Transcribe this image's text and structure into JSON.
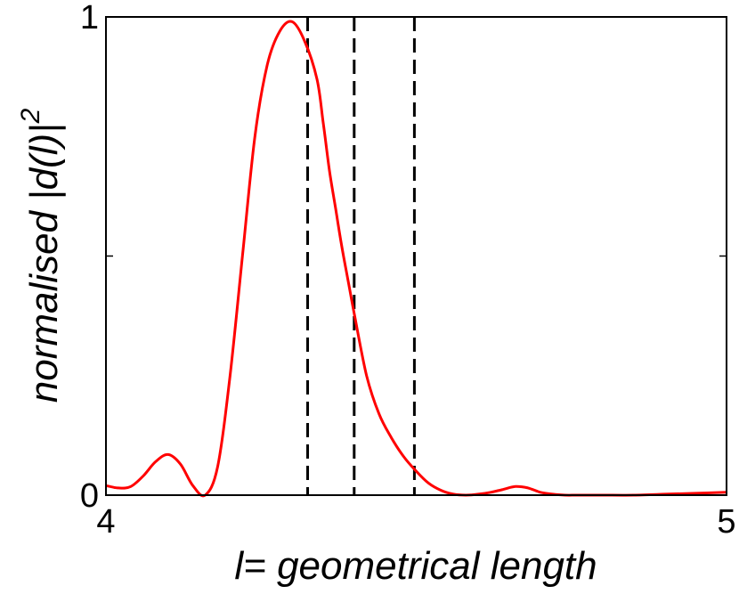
{
  "chart_data": {
    "type": "line",
    "xlabel": "l= geometrical length",
    "ylabel": "normalised |d(l)|",
    "ylabel_superscript": "2",
    "xlim": [
      4,
      5
    ],
    "ylim": [
      0,
      1
    ],
    "x_ticks": [
      {
        "value": 4,
        "label": "4"
      },
      {
        "value": 5,
        "label": "5"
      }
    ],
    "y_ticks": [
      {
        "value": 0,
        "label": "0"
      },
      {
        "value": 0.5,
        "label": ""
      },
      {
        "value": 1,
        "label": "1"
      }
    ],
    "grid": false,
    "series": [
      {
        "color": "#ff0000",
        "style": "solid",
        "x": [
          4.0,
          4.02,
          4.04,
          4.06,
          4.08,
          4.1,
          4.12,
          4.14,
          4.16,
          4.18,
          4.2,
          4.22,
          4.24,
          4.26,
          4.28,
          4.3,
          4.32,
          4.34,
          4.35,
          4.36,
          4.37,
          4.38,
          4.39,
          4.4,
          4.42,
          4.44,
          4.46,
          4.48,
          4.5,
          4.52,
          4.54,
          4.56,
          4.58,
          4.6,
          4.62,
          4.64,
          4.66,
          4.68,
          4.7,
          4.72,
          4.74,
          4.76,
          4.8,
          4.85,
          4.9,
          4.95,
          5.0
        ],
        "y": [
          0.02,
          0.015,
          0.018,
          0.04,
          0.07,
          0.085,
          0.065,
          0.02,
          0.0,
          0.06,
          0.25,
          0.5,
          0.75,
          0.9,
          0.97,
          0.99,
          0.95,
          0.87,
          0.78,
          0.68,
          0.6,
          0.52,
          0.45,
          0.38,
          0.25,
          0.17,
          0.12,
          0.08,
          0.05,
          0.025,
          0.01,
          0.002,
          0.0,
          0.002,
          0.006,
          0.012,
          0.018,
          0.015,
          0.006,
          0.002,
          0.0,
          0.0,
          0.0,
          0.0,
          0.002,
          0.004,
          0.006
        ]
      }
    ],
    "vlines": [
      {
        "x": 4.325,
        "color": "#000000",
        "style": "dashed"
      },
      {
        "x": 4.4,
        "color": "#000000",
        "style": "dashed"
      },
      {
        "x": 4.497,
        "color": "#000000",
        "style": "dashed"
      }
    ]
  }
}
